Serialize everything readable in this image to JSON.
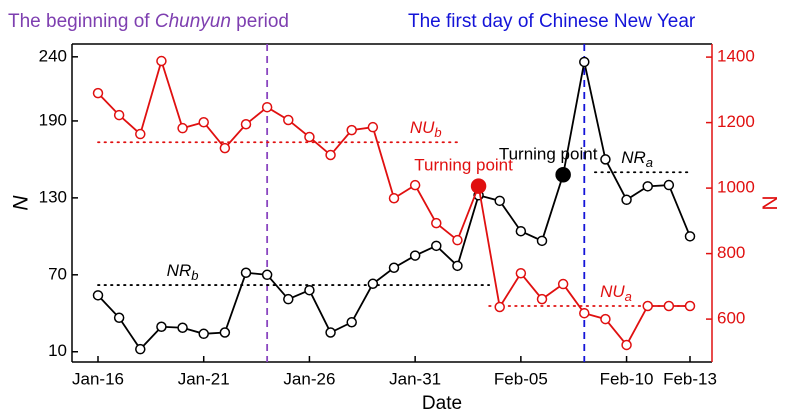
{
  "chart_data": {
    "type": "line",
    "title_parts": [
      {
        "text": "The beginning of ",
        "italic": false,
        "color": "#7e3fb0"
      },
      {
        "text": "Chunyun",
        "italic": true,
        "color": "#7e3fb0"
      },
      {
        "text": " period",
        "italic": false,
        "color": "#7e3fb0"
      },
      {
        "text": "The first day of Chinese New Year",
        "italic": false,
        "color": "#1414d8"
      }
    ],
    "x_label": "Date",
    "y_label": "N",
    "y2_label": "N",
    "categories": [
      "Jan-16",
      null,
      null,
      null,
      null,
      "Jan-21",
      null,
      null,
      null,
      null,
      "Jan-26",
      null,
      null,
      null,
      null,
      "Jan-31",
      null,
      null,
      null,
      null,
      "Feb-05",
      null,
      null,
      null,
      null,
      "Feb-10",
      null,
      null,
      "Feb-13"
    ],
    "ylim": [
      2,
      250
    ],
    "yticks": [
      10,
      70,
      130,
      190,
      240
    ],
    "y2lim": [
      469,
      1440
    ],
    "y2ticks": [
      600,
      800,
      1000,
      1200,
      1400
    ],
    "series": [
      {
        "color": "#000000",
        "axis": "y",
        "filled": [
          22
        ],
        "values": [
          54,
          36.5,
          12,
          29.5,
          28.7,
          24,
          25,
          71.6,
          70,
          51,
          58,
          25,
          33,
          63,
          75.5,
          85,
          92.6,
          77,
          132,
          127.7,
          104,
          96.5,
          148,
          236,
          160,
          128.5,
          139,
          140,
          100
        ]
      },
      {
        "color": "#e01010",
        "axis": "y2",
        "filled": [
          18
        ],
        "values": [
          1290,
          1223,
          1165,
          1388,
          1183,
          1201,
          1122,
          1195,
          1247,
          1208,
          1156,
          1101,
          1177,
          1186,
          969,
          1009,
          893,
          841,
          1006,
          637,
          740,
          661,
          707,
          618,
          600,
          521,
          640,
          640,
          640
        ]
      }
    ],
    "ref_lines": [
      {
        "name": "NU",
        "sub": "b",
        "value": 1140,
        "axis": "y2",
        "from": 0,
        "to": 17,
        "color": "#e01010",
        "label_at": 15.5
      },
      {
        "name": "NR",
        "sub": "b",
        "value": 62,
        "axis": "y",
        "from": 0,
        "to": 18.5,
        "color": "#000000",
        "label_at": 4
      },
      {
        "name": "NU",
        "sub": "a",
        "value": 640,
        "axis": "y2",
        "from": 18.5,
        "to": 28,
        "color": "#e01010",
        "label_at": 24.5
      },
      {
        "name": "NR",
        "sub": "a",
        "value": 150,
        "axis": "y",
        "from": 23.5,
        "to": 28,
        "color": "#000000",
        "label_at": 25.5
      }
    ],
    "events": [
      {
        "index": 8,
        "color": "#8a46c0"
      },
      {
        "index": 23,
        "color": "#1414d8"
      }
    ],
    "annotations": [
      {
        "text": "Turning point",
        "color": "#000000",
        "series": 0,
        "index": 22
      },
      {
        "text": "Turning point",
        "color": "#e01010",
        "series": 1,
        "index": 18
      }
    ]
  }
}
